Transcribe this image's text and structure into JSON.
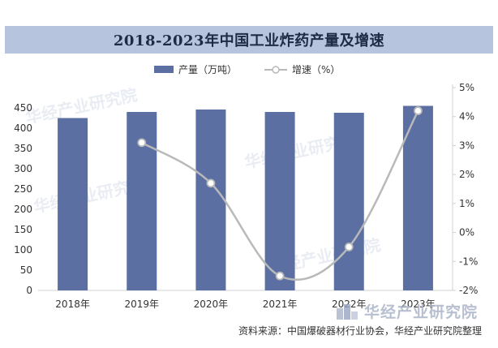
{
  "title": "2018-2023年中国工业炸药产量及增速",
  "legend": {
    "bar_label": "产量（万吨）",
    "line_label": "增速（%）"
  },
  "source_text": "资料来源：中国爆破器材行业协会，华经产业研究院整理",
  "watermark_text": "华经产业研究院",
  "brand_name": "华经产业研究院",
  "colors": {
    "bar": "#5b6fa3",
    "line": "#b9b9b9",
    "title_bg": "#b6c4dd"
  },
  "chart_data": {
    "type": "bar",
    "categories": [
      "2018年",
      "2019年",
      "2020年",
      "2021年",
      "2022年",
      "2023年"
    ],
    "series": [
      {
        "name": "产量（万吨）",
        "type": "bar",
        "axis": "left",
        "values": [
          425,
          440,
          446,
          440,
          438,
          455
        ]
      },
      {
        "name": "增速（%）",
        "type": "line",
        "axis": "right",
        "values": [
          null,
          3.1,
          1.7,
          -1.5,
          -0.5,
          4.2
        ]
      }
    ],
    "y_left": {
      "ylim": [
        0,
        500
      ],
      "ticks": [
        0,
        50,
        100,
        150,
        200,
        250,
        300,
        350,
        400,
        450
      ]
    },
    "y_right": {
      "ylim": [
        -2,
        5
      ],
      "ticks": [
        "-2%",
        "-1%",
        "0%",
        "1%",
        "2%",
        "3%",
        "4%",
        "5%"
      ]
    },
    "grid": false,
    "legend_position": "top-center"
  }
}
